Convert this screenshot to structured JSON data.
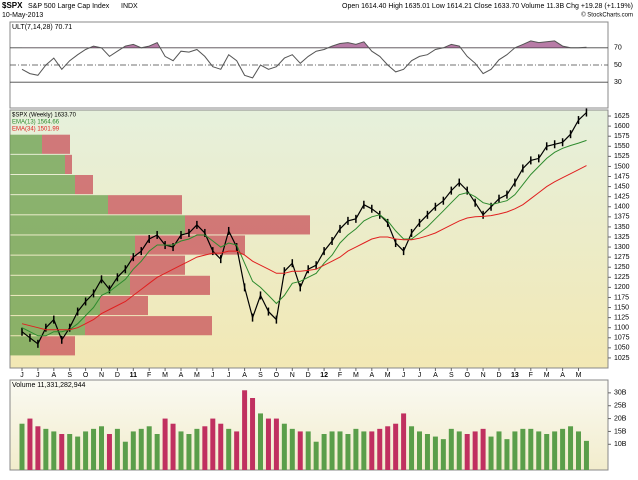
{
  "chart_data": {
    "type": "stock",
    "symbol": "$SPX",
    "name": "S&P 500 Large Cap Index",
    "exchange": "INDX",
    "date": "10-May-2013",
    "quote": "Open 1614.40  High 1635.01  Low 1614.21  Close 1633.70  Volume 11.3B  Chg +19.28 (+1.19%)",
    "credit": "© StockCharts.com",
    "categories": [
      "J",
      null,
      "J",
      null,
      "A",
      null,
      "S",
      null,
      "O",
      null,
      "N",
      null,
      "D",
      null,
      "11",
      null,
      "F",
      null,
      "M",
      null,
      "A",
      null,
      "M",
      null,
      "J",
      null,
      "J",
      null,
      "A",
      null,
      "S",
      null,
      "O",
      null,
      "N",
      null,
      "D",
      null,
      "12",
      null,
      "F",
      null,
      "M",
      null,
      "A",
      null,
      "M",
      null,
      "J",
      null,
      "J",
      null,
      "A",
      null,
      "S",
      null,
      "O",
      null,
      "N",
      null,
      "D",
      null,
      "13",
      null,
      "F",
      null,
      "M",
      null,
      "A",
      null,
      "M",
      null
    ],
    "ult": {
      "name": "ULT(7,14,28) 70.71",
      "color": "#555555",
      "fill": "#a0508a",
      "ylim": [
        0,
        100
      ],
      "yticks": [
        30,
        50,
        70
      ],
      "values": [
        45,
        40,
        38,
        50,
        58,
        45,
        55,
        62,
        68,
        72,
        70,
        60,
        66,
        72,
        74,
        70,
        72,
        76,
        60,
        55,
        66,
        65,
        68,
        60,
        48,
        45,
        62,
        55,
        38,
        35,
        50,
        45,
        48,
        58,
        62,
        52,
        60,
        66,
        68,
        72,
        75,
        76,
        74,
        77,
        66,
        60,
        50,
        42,
        45,
        55,
        60,
        62,
        68,
        70,
        74,
        72,
        60,
        52,
        40,
        45,
        56,
        62,
        70,
        74,
        78,
        76,
        77,
        78,
        72,
        70,
        70,
        70.71
      ]
    },
    "price": {
      "ylim": [
        1000,
        1640
      ],
      "yticks": [
        1025,
        1050,
        1075,
        1100,
        1125,
        1150,
        1175,
        1200,
        1225,
        1250,
        1275,
        1300,
        1325,
        1350,
        1375,
        1400,
        1425,
        1450,
        1475,
        1500,
        1525,
        1550,
        1575,
        1600,
        1625
      ],
      "series": [
        {
          "name": "$SPX (Weekly) 1633.70",
          "color": "#000000",
          "values": [
            1090,
            1075,
            1060,
            1100,
            1120,
            1070,
            1100,
            1140,
            1165,
            1185,
            1220,
            1195,
            1225,
            1245,
            1275,
            1290,
            1320,
            1330,
            1305,
            1300,
            1330,
            1335,
            1355,
            1335,
            1290,
            1270,
            1340,
            1300,
            1200,
            1125,
            1180,
            1140,
            1120,
            1240,
            1260,
            1200,
            1245,
            1255,
            1290,
            1315,
            1345,
            1365,
            1370,
            1405,
            1395,
            1380,
            1360,
            1310,
            1290,
            1335,
            1360,
            1380,
            1400,
            1415,
            1440,
            1460,
            1440,
            1410,
            1380,
            1400,
            1420,
            1430,
            1460,
            1495,
            1515,
            1520,
            1550,
            1555,
            1560,
            1580,
            1615,
            1633.7
          ]
        },
        {
          "name": "EMA(13) 1564.66",
          "color": "#2e8b2e",
          "values": [
            1100,
            1090,
            1080,
            1080,
            1090,
            1090,
            1095,
            1110,
            1130,
            1150,
            1180,
            1190,
            1205,
            1220,
            1245,
            1265,
            1290,
            1305,
            1305,
            1305,
            1315,
            1320,
            1330,
            1330,
            1315,
            1300,
            1310,
            1305,
            1260,
            1215,
            1200,
            1180,
            1160,
            1180,
            1210,
            1215,
            1225,
            1235,
            1260,
            1280,
            1310,
            1330,
            1345,
            1365,
            1375,
            1380,
            1365,
            1340,
            1320,
            1320,
            1335,
            1350,
            1370,
            1390,
            1410,
            1430,
            1435,
            1425,
            1410,
            1405,
            1410,
            1415,
            1430,
            1455,
            1480,
            1500,
            1520,
            1535,
            1545,
            1552,
            1558,
            1564.66
          ]
        },
        {
          "name": "EMA(34) 1501.99",
          "color": "#e02020",
          "values": [
            1110,
            1105,
            1100,
            1095,
            1095,
            1095,
            1095,
            1100,
            1110,
            1120,
            1135,
            1145,
            1155,
            1165,
            1180,
            1195,
            1210,
            1225,
            1235,
            1245,
            1255,
            1265,
            1275,
            1280,
            1285,
            1285,
            1290,
            1290,
            1280,
            1265,
            1255,
            1245,
            1235,
            1235,
            1240,
            1240,
            1242,
            1245,
            1255,
            1265,
            1275,
            1290,
            1300,
            1310,
            1320,
            1325,
            1325,
            1320,
            1318,
            1318,
            1322,
            1328,
            1335,
            1345,
            1355,
            1365,
            1372,
            1375,
            1376,
            1378,
            1382,
            1387,
            1395,
            1405,
            1420,
            1435,
            1450,
            1462,
            1472,
            1482,
            1492,
            1501.99
          ]
        }
      ],
      "volume_by_price": {
        "bins": [
          1030,
          1080,
          1130,
          1180,
          1230,
          1280,
          1330,
          1380,
          1430,
          1480,
          1530,
          1580
        ],
        "up": [
          30,
          75,
          90,
          120,
          120,
          125,
          175,
          98,
          65,
          55,
          32
        ],
        "down": [
          35,
          127,
          48,
          80,
          55,
          110,
          125,
          74,
          18,
          7,
          28
        ],
        "up_color": "#6a9e4c",
        "down_color": "#c8505a"
      }
    },
    "volume": {
      "name": "Volume 11,331,282,944",
      "ylim": [
        0,
        35
      ],
      "yticks": [
        {
          "value": 10,
          "label": "10B"
        },
        {
          "value": 15,
          "label": "15B"
        },
        {
          "value": 20,
          "label": "20B"
        },
        {
          "value": 25,
          "label": "25B"
        },
        {
          "value": 30,
          "label": "30B"
        }
      ],
      "up_color": "#5a9e4a",
      "down_color": "#c03060",
      "values": [
        18,
        20,
        17,
        16,
        15,
        14,
        14,
        13,
        15,
        16,
        17,
        14,
        16,
        11,
        15,
        16,
        17,
        14,
        20,
        18,
        15,
        14,
        16,
        17,
        20,
        18,
        16,
        15,
        31,
        28,
        22,
        20,
        20,
        18,
        16,
        15,
        15,
        11,
        14,
        15,
        15,
        14,
        16,
        15,
        15,
        16,
        17,
        18,
        22,
        17,
        15,
        14,
        13,
        12,
        16,
        15,
        14,
        15,
        16,
        13,
        15,
        12,
        15,
        16,
        16,
        15,
        14,
        15,
        16,
        17,
        15,
        11.33
      ]
    }
  }
}
